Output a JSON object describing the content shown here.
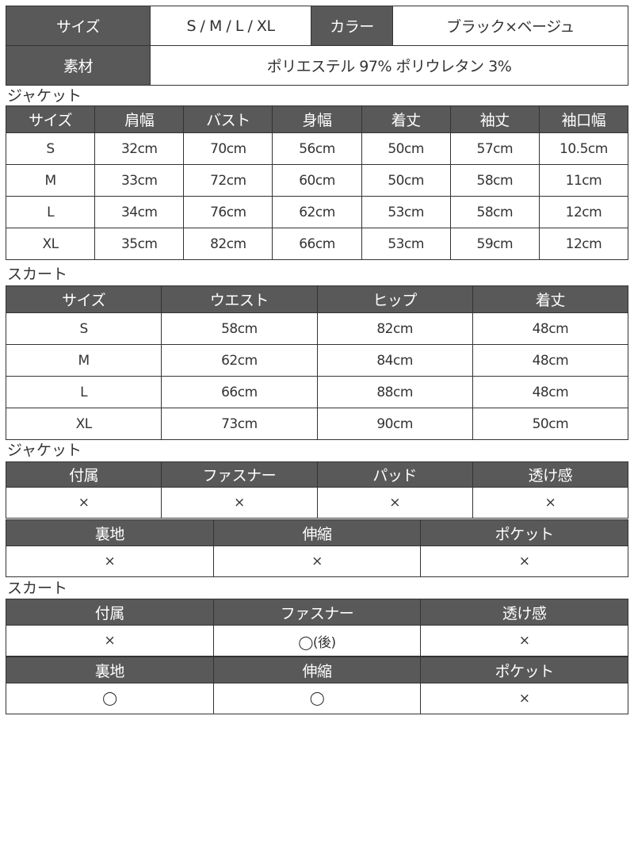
{
  "overview": {
    "size_label": "サイズ",
    "size_value": "S / M / L / XL",
    "color_label": "カラー",
    "color_value": "ブラック×ベージュ",
    "material_label": "素材",
    "material_value": "ポリエステル 97% ポリウレタン 3%"
  },
  "jacket_label": "ジャケット",
  "jacket_sizes": {
    "headers": [
      "サイズ",
      "肩幅",
      "バスト",
      "身幅",
      "着丈",
      "袖丈",
      "袖口幅"
    ],
    "rows": [
      [
        "S",
        "32cm",
        "70cm",
        "56cm",
        "50cm",
        "57cm",
        "10.5cm"
      ],
      [
        "M",
        "33cm",
        "72cm",
        "60cm",
        "50cm",
        "58cm",
        "11cm"
      ],
      [
        "L",
        "34cm",
        "76cm",
        "62cm",
        "53cm",
        "58cm",
        "12cm"
      ],
      [
        "XL",
        "35cm",
        "82cm",
        "66cm",
        "53cm",
        "59cm",
        "12cm"
      ]
    ]
  },
  "skirt_label": "スカート",
  "skirt_sizes": {
    "headers": [
      "サイズ",
      "ウエスト",
      "ヒップ",
      "着丈"
    ],
    "rows": [
      [
        "S",
        "58cm",
        "82cm",
        "48cm"
      ],
      [
        "M",
        "62cm",
        "84cm",
        "48cm"
      ],
      [
        "L",
        "66cm",
        "88cm",
        "48cm"
      ],
      [
        "XL",
        "73cm",
        "90cm",
        "50cm"
      ]
    ]
  },
  "jacket_label_2": "ジャケット",
  "jacket_attr1": {
    "headers": [
      "付属",
      "ファスナー",
      "パッド",
      "透け感"
    ],
    "rows": [
      [
        "×",
        "×",
        "×",
        "×"
      ]
    ]
  },
  "jacket_attr2": {
    "headers": [
      "裏地",
      "伸縮",
      "ポケット"
    ],
    "rows": [
      [
        "×",
        "×",
        "×"
      ]
    ]
  },
  "skirt_label_2": "スカート",
  "skirt_attr1": {
    "headers": [
      "付属",
      "ファスナー",
      "透け感"
    ],
    "rows": [
      [
        "×",
        "◯(後)",
        "×"
      ]
    ]
  },
  "skirt_attr2": {
    "headers": [
      "裏地",
      "伸縮",
      "ポケット"
    ],
    "rows": [
      [
        "◯",
        "◯",
        "×"
      ]
    ]
  },
  "colors": {
    "header_bg": "#595959",
    "border": "#333333"
  }
}
